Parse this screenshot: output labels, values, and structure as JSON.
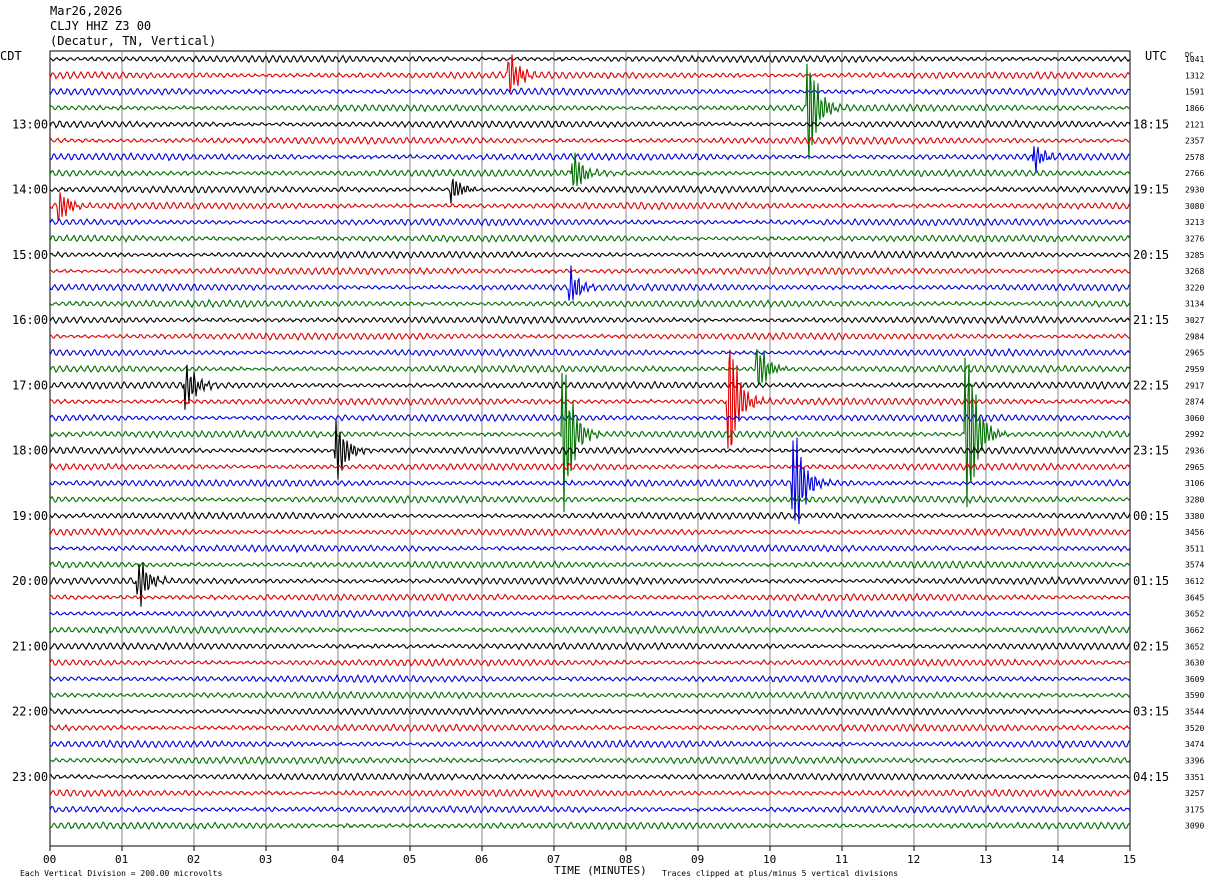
{
  "chart_data": {
    "type": "line",
    "title_lines": [
      "Mar26,2026",
      "CLJY HHZ Z3 00",
      "(Decatur, TN, Vertical)"
    ],
    "left_label": "CDT",
    "right_label": "UTC",
    "dc_label": "DC",
    "xlabel": "TIME (MINUTES)",
    "x_ticks": [
      "00",
      "01",
      "02",
      "03",
      "04",
      "05",
      "06",
      "07",
      "08",
      "09",
      "10",
      "11",
      "12",
      "13",
      "14",
      "15"
    ],
    "xlim": [
      0,
      15
    ],
    "trace_colors": [
      "#000000",
      "#e00000",
      "#0000e0",
      "#007000"
    ],
    "left_time_labels": [
      "13:00",
      "14:00",
      "15:00",
      "16:00",
      "17:00",
      "18:00",
      "19:00",
      "20:00",
      "21:00",
      "22:00",
      "23:00"
    ],
    "right_time_labels": [
      "18:15",
      "19:15",
      "20:15",
      "21:15",
      "22:15",
      "23:15",
      "00:15",
      "01:15",
      "02:15",
      "03:15",
      "04:15"
    ],
    "dc_offsets": [
      "1041",
      "1312",
      "1591",
      "1866",
      "2121",
      "2357",
      "2578",
      "2766",
      "2930",
      "3080",
      "3213",
      "3276",
      "3285",
      "3268",
      "3220",
      "3134",
      "3027",
      "2984",
      "2965",
      "2959",
      "2917",
      "2874",
      "3060",
      "2992",
      "2936",
      "2965",
      "3106",
      "3280",
      "3380",
      "3456",
      "3511",
      "3574",
      "3612",
      "3645",
      "3652",
      "3662",
      "3652",
      "3630",
      "3609",
      "3590",
      "3544",
      "3520",
      "3474",
      "3396",
      "3351",
      "3257",
      "3175",
      "3090"
    ],
    "events": [
      {
        "row": 21,
        "minute": 9.45,
        "amp": 3.0
      },
      {
        "row": 23,
        "minute": 7.15,
        "amp": 3.5
      },
      {
        "row": 23,
        "minute": 12.75,
        "amp": 4.0
      },
      {
        "row": 24,
        "minute": 4.0,
        "amp": 1.4
      },
      {
        "row": 26,
        "minute": 10.35,
        "amp": 2.5
      },
      {
        "row": 20,
        "minute": 1.9,
        "amp": 1.1
      },
      {
        "row": 19,
        "minute": 9.85,
        "amp": 1.2
      },
      {
        "row": 3,
        "minute": 10.55,
        "amp": 2.5
      },
      {
        "row": 1,
        "minute": 6.4,
        "amp": 1.0
      },
      {
        "row": 32,
        "minute": 1.25,
        "amp": 1.0
      },
      {
        "row": 7,
        "minute": 7.3,
        "amp": 0.8
      },
      {
        "row": 14,
        "minute": 7.25,
        "amp": 0.8
      },
      {
        "row": 8,
        "minute": 5.6,
        "amp": 0.6
      },
      {
        "row": 9,
        "minute": 0.15,
        "amp": 0.7
      },
      {
        "row": 6,
        "minute": 13.7,
        "amp": 0.6
      }
    ],
    "footer_left": "Each Vertical Division =  200.00 microvolts",
    "footer_right": "Traces clipped at plus/minus 5 vertical divisions"
  }
}
